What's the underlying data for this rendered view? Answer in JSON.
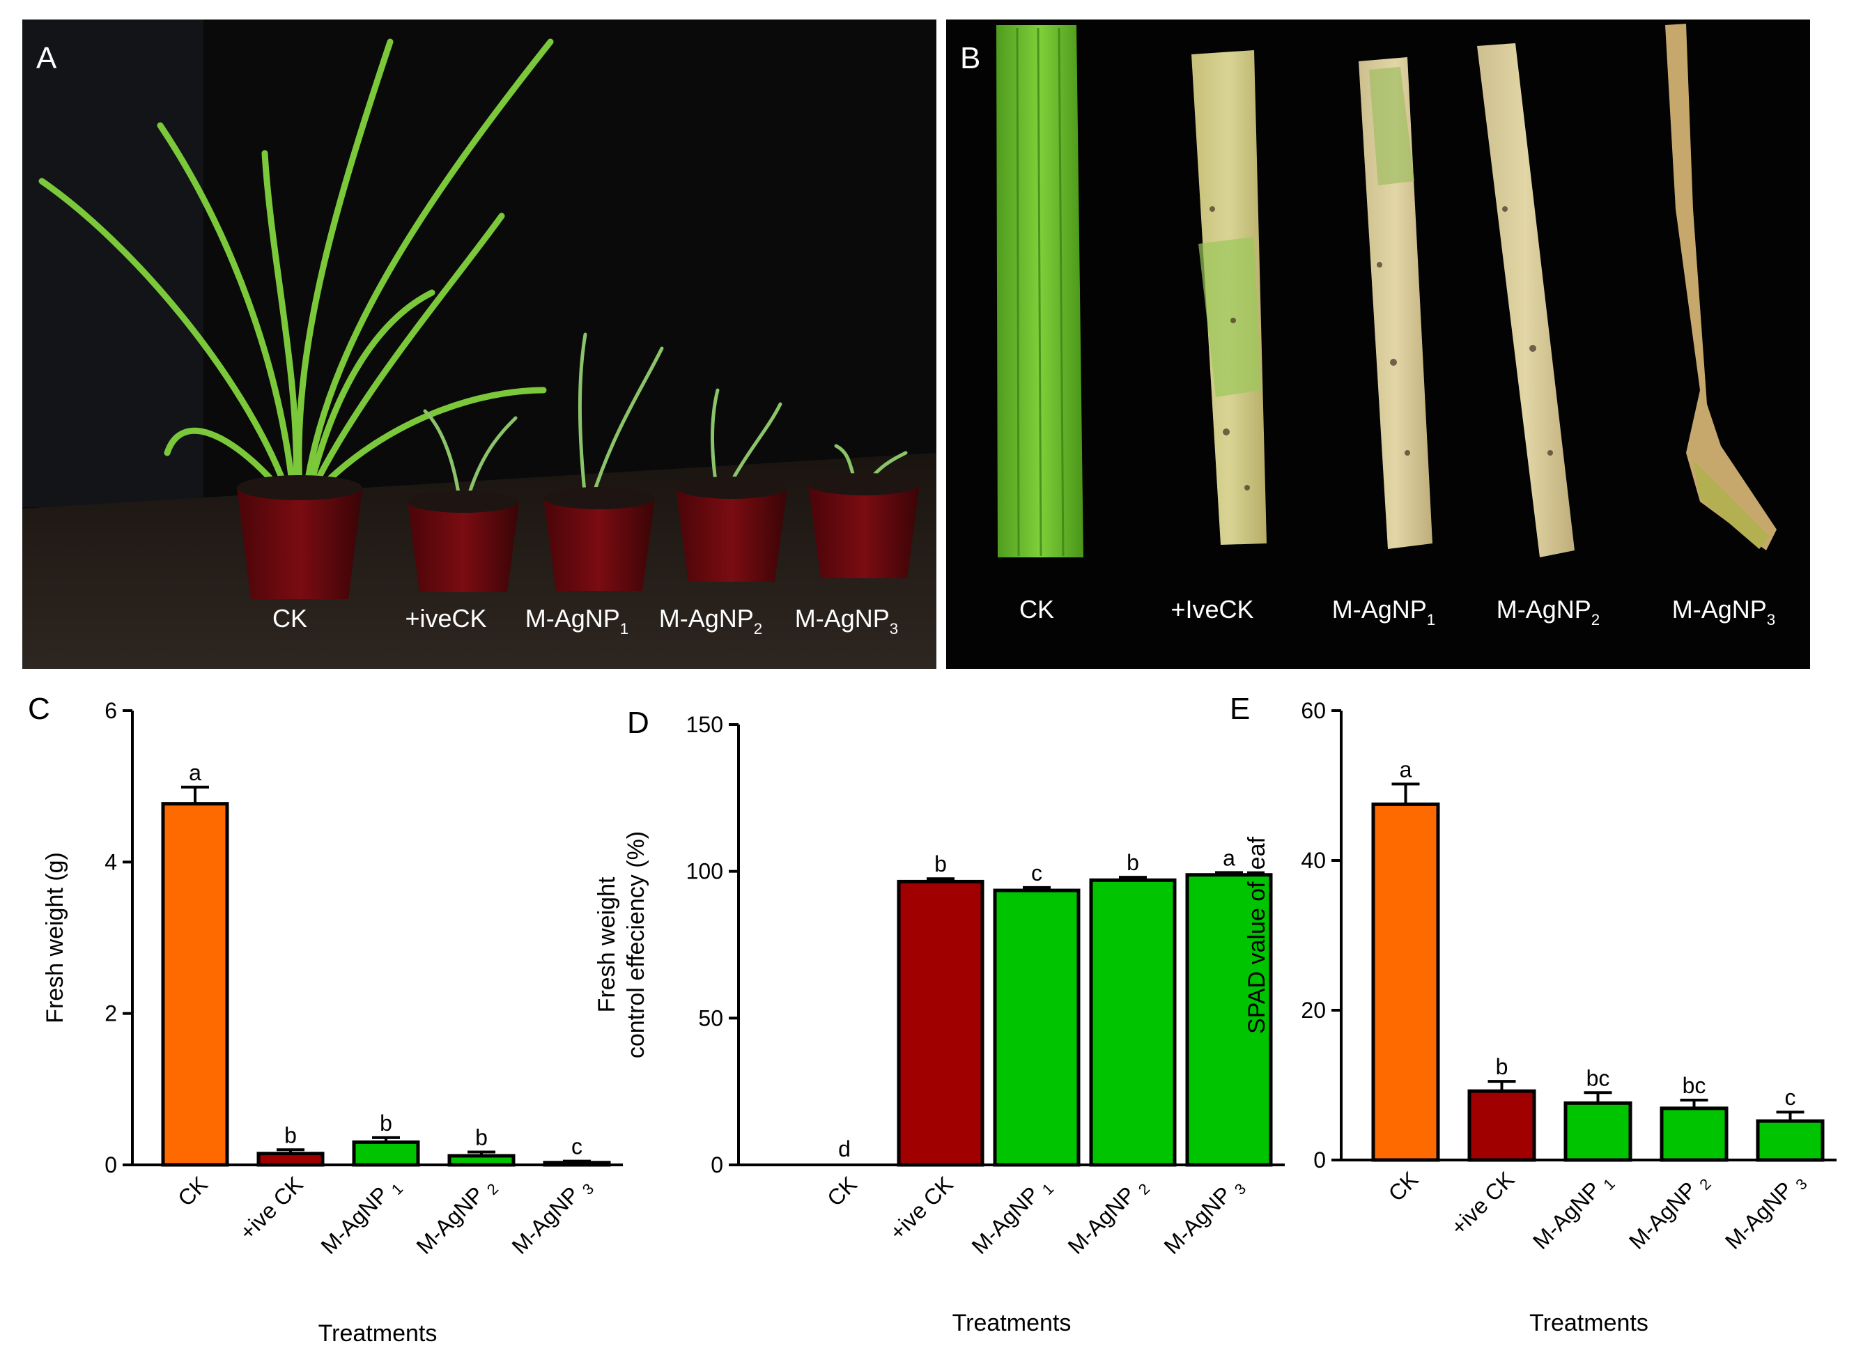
{
  "panels": {
    "A": {
      "letter": "A",
      "labels": [
        "CK",
        "+iveCK",
        "M-AgNP",
        "M-AgNP",
        "M-AgNP"
      ],
      "subs": [
        "",
        "",
        "1",
        "2",
        "3"
      ]
    },
    "B": {
      "letter": "B",
      "labels": [
        "CK",
        "+IveCK",
        "M-AgNP",
        "M-AgNP",
        "M-AgNP"
      ],
      "subs": [
        "",
        "",
        "1",
        "2",
        "3"
      ]
    }
  },
  "colors": {
    "orange": "#ff6a00",
    "darkred": "#a00000",
    "green": "#00c400",
    "photo_bg": "#0a0a0a"
  },
  "chart_data": [
    {
      "letter": "C",
      "type": "bar",
      "categories": [
        "CK",
        "+ive CK",
        "M-AgNP 1",
        "M-AgNP 2",
        "M-AgNP 3"
      ],
      "values": [
        4.77,
        0.15,
        0.3,
        0.12,
        0.03
      ],
      "errors": [
        0.22,
        0.05,
        0.06,
        0.05,
        0.02
      ],
      "letters": [
        "a",
        "b",
        "b",
        "b",
        "c"
      ],
      "bar_colors": [
        "#ff6a00",
        "#a00000",
        "#00c400",
        "#00c400",
        "#00c400"
      ],
      "ylim": [
        0,
        6
      ],
      "yticks": [
        "0",
        "2",
        "4",
        "6"
      ],
      "ylabel": "Fresh weight (g)",
      "xlabel": "Treatments"
    },
    {
      "letter": "D",
      "type": "bar",
      "categories": [
        "CK",
        "+ive CK",
        "M-AgNP 1",
        "M-AgNP 2",
        "M-AgNP 3"
      ],
      "values": [
        0,
        96.5,
        93.5,
        97,
        98.8
      ],
      "errors": [
        0,
        1.0,
        1.0,
        1.0,
        0.8
      ],
      "letters": [
        "d",
        "b",
        "c",
        "b",
        "a"
      ],
      "bar_colors": [
        "#ff6a00",
        "#a00000",
        "#00c400",
        "#00c400",
        "#00c400"
      ],
      "ylim": [
        0,
        150
      ],
      "yticks": [
        "0",
        "50",
        "100",
        "150"
      ],
      "ylabel": "Fresh weight",
      "ylabel2": "control effeciency (%)",
      "xlabel": "Treatments"
    },
    {
      "letter": "E",
      "type": "bar",
      "categories": [
        "CK",
        "+ive CK",
        "M-AgNP 1",
        "M-AgNP 2",
        "M-AgNP 3"
      ],
      "values": [
        47.5,
        9.2,
        7.6,
        6.9,
        5.2
      ],
      "errors": [
        2.7,
        1.3,
        1.4,
        1.1,
        1.2
      ],
      "letters": [
        "a",
        "b",
        "bc",
        "bc",
        "c"
      ],
      "bar_colors": [
        "#ff6a00",
        "#a00000",
        "#00c400",
        "#00c400",
        "#00c400"
      ],
      "ylim": [
        0,
        60
      ],
      "yticks": [
        "0",
        "20",
        "40",
        "60"
      ],
      "ylabel": "SPAD value of leaf",
      "xlabel": "Treatments"
    }
  ]
}
